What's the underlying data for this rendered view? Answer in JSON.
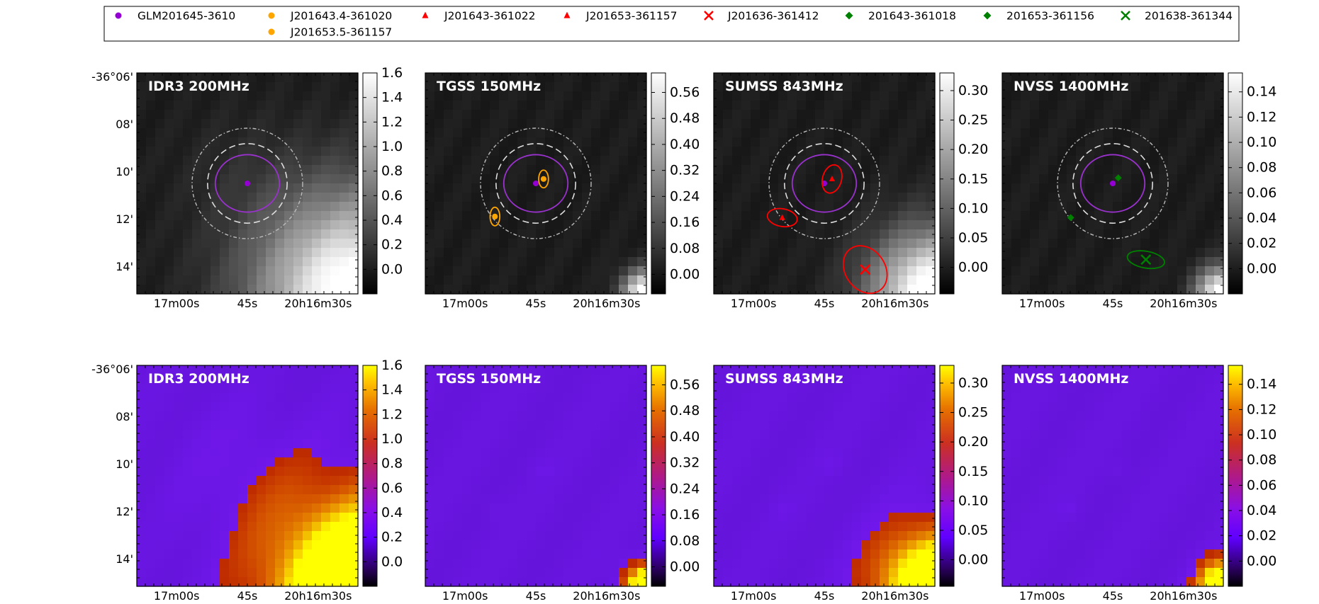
{
  "legend": {
    "placement": "top",
    "entries": [
      {
        "label": "GLM201645-3610",
        "marker": "dot",
        "color": "#9400d3"
      },
      {
        "label": "J201643.4-361020",
        "marker": "dot",
        "color": "#ffa500"
      },
      {
        "label": "J201643-361022",
        "marker": "triangle",
        "color": "#ff0000"
      },
      {
        "label": "J201653-361157",
        "marker": "triangle",
        "color": "#ff0000"
      },
      {
        "label": "J201636-361412",
        "marker": "x",
        "color": "#ff0000"
      },
      {
        "label": "201643-361018",
        "marker": "diamond",
        "color": "#008000"
      },
      {
        "label": "201653-361156",
        "marker": "diamond",
        "color": "#008000"
      },
      {
        "label": "201638-361344",
        "marker": "x",
        "color": "#008000"
      },
      {
        "label": "J201653.5-361157",
        "marker": "dot",
        "color": "#ffa500"
      }
    ]
  },
  "axes": {
    "y_tick_labels": [
      "-36°06'",
      "08'",
      "10'",
      "12'",
      "14'"
    ],
    "x_tick_labels": [
      "17m00s",
      "45s",
      "20h16m30s"
    ]
  },
  "chart_data": [
    {
      "type": "heatmap",
      "row": "top",
      "colormap": "gray",
      "title": "IDR3 200MHz",
      "colorbar_ticks": [
        "1.6",
        "1.4",
        "1.2",
        "1.0",
        "0.8",
        "0.6",
        "0.4",
        "0.2",
        "0.0"
      ],
      "colorbar_range": [
        -0.2,
        1.6
      ],
      "sources": [
        {
          "name": "GLM201645-3610",
          "marker": "dot",
          "color": "#9400d3",
          "ellipse": true
        }
      ],
      "bright": [
        {
          "loc": "bottom-right",
          "strength": 1.0,
          "spread": 3.2
        }
      ]
    },
    {
      "type": "heatmap",
      "row": "top",
      "colormap": "gray",
      "title": "TGSS 150MHz",
      "colorbar_ticks": [
        "0.56",
        "0.48",
        "0.40",
        "0.32",
        "0.24",
        "0.16",
        "0.08",
        "0.00"
      ],
      "colorbar_range": [
        -0.06,
        0.62
      ],
      "sources": [
        {
          "name": "GLM201645-3610",
          "marker": "dot",
          "color": "#9400d3",
          "ellipse": true
        },
        {
          "name": "J201643.4-361020",
          "marker": "dot",
          "color": "#ffa500",
          "ellipse": true
        },
        {
          "name": "J201653.5-361157",
          "marker": "dot",
          "color": "#ffa500",
          "ellipse": true
        }
      ],
      "bright": [
        {
          "loc": "bottom-right",
          "strength": 1.0,
          "spread": 1.6
        }
      ]
    },
    {
      "type": "heatmap",
      "row": "top",
      "colormap": "gray",
      "title": "SUMSS 843MHz",
      "colorbar_ticks": [
        "0.30",
        "0.25",
        "0.20",
        "0.15",
        "0.10",
        "0.05",
        "0.00"
      ],
      "colorbar_range": [
        -0.045,
        0.33
      ],
      "sources": [
        {
          "name": "GLM201645-3610",
          "marker": "dot",
          "color": "#9400d3",
          "ellipse": true
        },
        {
          "name": "J201643-361022",
          "marker": "triangle",
          "color": "#ff0000",
          "ellipse": true
        },
        {
          "name": "J201653-361157",
          "marker": "triangle",
          "color": "#ff0000",
          "ellipse": true
        },
        {
          "name": "J201636-361412",
          "marker": "x",
          "color": "#ff0000",
          "ellipse": true
        }
      ],
      "bright": [
        {
          "loc": "bottom-right",
          "strength": 1.0,
          "spread": 2.0
        }
      ]
    },
    {
      "type": "heatmap",
      "row": "top",
      "colormap": "gray",
      "title": "NVSS 1400MHz",
      "colorbar_ticks": [
        "0.14",
        "0.12",
        "0.10",
        "0.08",
        "0.06",
        "0.04",
        "0.02",
        "0.00"
      ],
      "colorbar_range": [
        -0.02,
        0.155
      ],
      "sources": [
        {
          "name": "GLM201645-3610",
          "marker": "dot",
          "color": "#9400d3",
          "ellipse": true
        },
        {
          "name": "201643-361018",
          "marker": "diamond",
          "color": "#008000",
          "ellipse": false
        },
        {
          "name": "201653-361156",
          "marker": "diamond",
          "color": "#008000",
          "ellipse": false
        },
        {
          "name": "201638-361344",
          "marker": "x",
          "color": "#008000",
          "ellipse": true
        }
      ],
      "bright": [
        {
          "loc": "bottom-right",
          "strength": 1.0,
          "spread": 1.8
        }
      ]
    },
    {
      "type": "heatmap",
      "row": "bottom",
      "colormap": "gnuplot",
      "title": "IDR3 200MHz",
      "colorbar_ticks": [
        "1.6",
        "1.4",
        "1.2",
        "1.0",
        "0.8",
        "0.6",
        "0.4",
        "0.2",
        "0.0"
      ],
      "colorbar_range": [
        -0.2,
        1.6
      ],
      "sources": [],
      "bright": [
        {
          "loc": "bottom-right",
          "strength": 1.0,
          "spread": 3.2
        }
      ]
    },
    {
      "type": "heatmap",
      "row": "bottom",
      "colormap": "gnuplot",
      "title": "TGSS 150MHz",
      "colorbar_ticks": [
        "0.56",
        "0.48",
        "0.40",
        "0.32",
        "0.24",
        "0.16",
        "0.08",
        "0.00"
      ],
      "colorbar_range": [
        -0.06,
        0.62
      ],
      "sources": [],
      "bright": [
        {
          "loc": "bottom-right",
          "strength": 1.0,
          "spread": 1.6
        }
      ]
    },
    {
      "type": "heatmap",
      "row": "bottom",
      "colormap": "gnuplot",
      "title": "SUMSS 843MHz",
      "colorbar_ticks": [
        "0.30",
        "0.25",
        "0.20",
        "0.15",
        "0.10",
        "0.05",
        "0.00"
      ],
      "colorbar_range": [
        -0.045,
        0.33
      ],
      "sources": [],
      "bright": [
        {
          "loc": "bottom-right",
          "strength": 1.0,
          "spread": 2.0
        }
      ]
    },
    {
      "type": "heatmap",
      "row": "bottom",
      "colormap": "gnuplot",
      "title": "NVSS 1400MHz",
      "colorbar_ticks": [
        "0.14",
        "0.12",
        "0.10",
        "0.08",
        "0.06",
        "0.04",
        "0.02",
        "0.00"
      ],
      "colorbar_range": [
        -0.02,
        0.155
      ],
      "sources": [],
      "bright": [
        {
          "loc": "bottom-right",
          "strength": 1.0,
          "spread": 1.8
        }
      ]
    }
  ]
}
